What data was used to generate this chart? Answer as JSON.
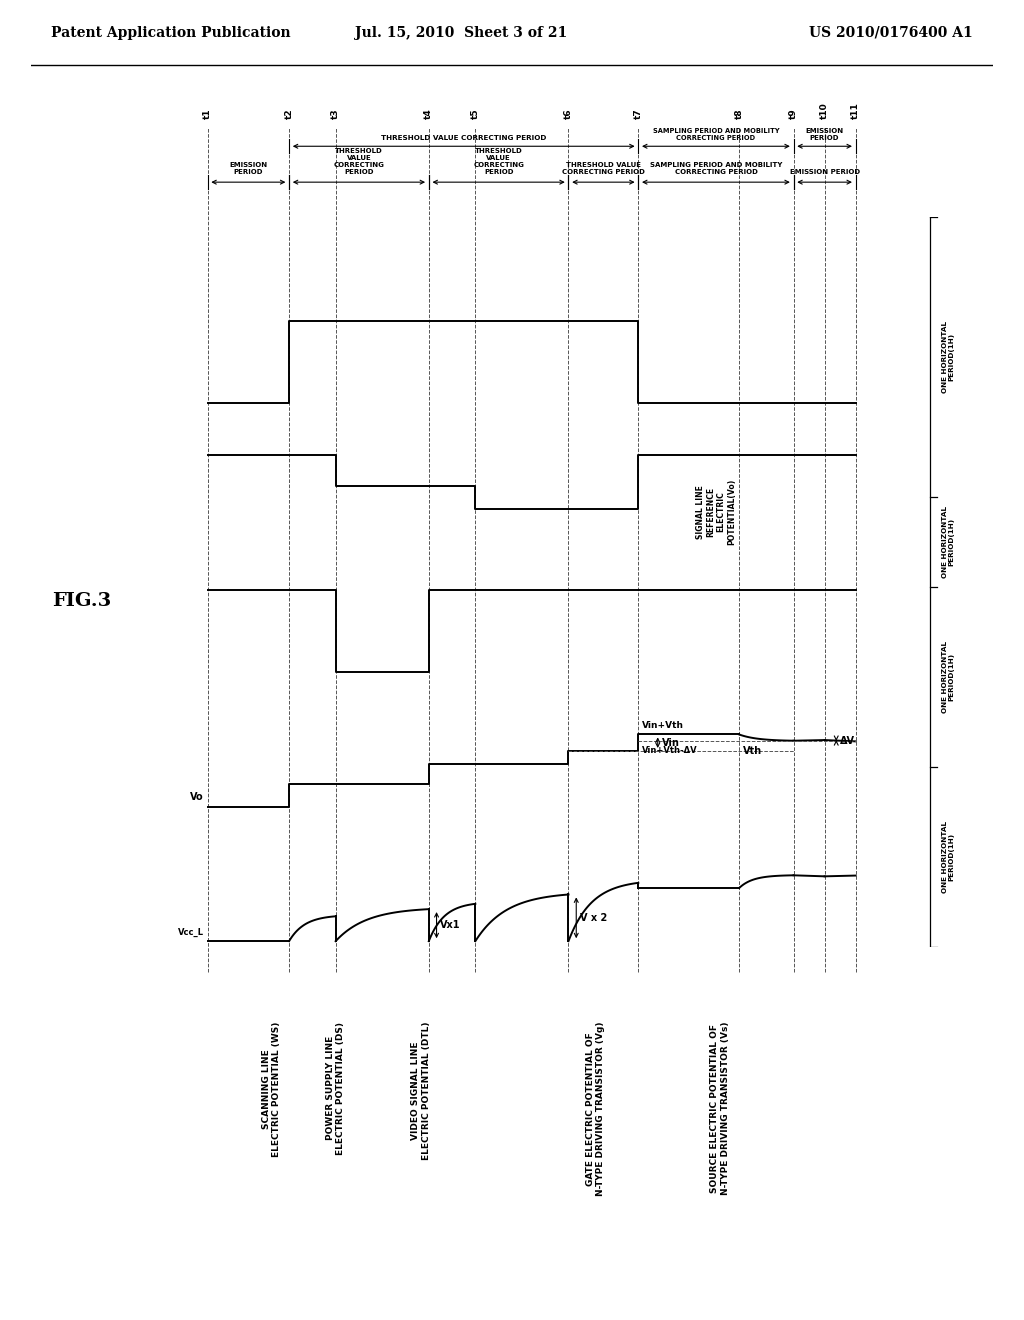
{
  "header_left": "Patent Application Publication",
  "header_center": "Jul. 15, 2010  Sheet 3 of 21",
  "header_right": "US 2010/0176400 A1",
  "fig_label": "FIG.3",
  "bg_color": "#ffffff",
  "signal_color": "#000000",
  "times": {
    "t1": 0.0,
    "t2": 1.05,
    "t3": 1.65,
    "t4": 2.85,
    "t5": 3.45,
    "t6": 4.65,
    "t7": 5.55,
    "t8": 6.85,
    "t9": 7.55,
    "t10": 7.95,
    "t11": 8.35
  },
  "x_max": 9.2,
  "signal_labels": [
    "SCANNING LINE\nELECTRIC POTENTIAL (WS)",
    "POWER SUPPLY LINE\nELECTRIC POTENTIAL (DS)",
    "VIDEO SIGNAL LINE\nELECTRIC POTENTIAL (DTL)",
    "GATE ELECTRIC POTENTIAL OF\nN-TYPE DRIVING TRANSISTOR (Vg)",
    "SOURCE ELECTRIC POTENTIAL OF\nN-TYPE DRIVING TRANSISTOR (Vs)"
  ],
  "left_period_labels": [
    [
      "EMISSION\nPERIOD",
      0.0,
      1.05
    ],
    [
      "THRESHOLD\nVALUE\nCORRECTING\nPERIOD",
      1.05,
      2.85
    ],
    [
      "THRESHOLD\nVALUE\nCORRECTING\nPERIOD",
      2.85,
      4.65
    ],
    [
      "THRESHOLD VALUE\nCORRECTING PERIOD",
      4.65,
      5.55
    ],
    [
      "SAMPLING PERIOD AND MOBILITY\nCORRECTING PERIOD",
      5.55,
      7.55
    ],
    [
      "EMISSION PERIOD",
      7.55,
      8.35
    ]
  ],
  "right_period_labels": [
    [
      "ONE HORIZONTAL\nPERIOD(1H)",
      1.05,
      2.85
    ],
    [
      "ONE HORIZONTAL\nPERIOD(1H)",
      2.85,
      4.65
    ],
    [
      "ONE HORIZONTAL\nPERIOD(1H)",
      4.65,
      5.55
    ],
    [
      "ONE HORIZONTAL\nPERIOD(1H)",
      5.55,
      8.35
    ]
  ]
}
